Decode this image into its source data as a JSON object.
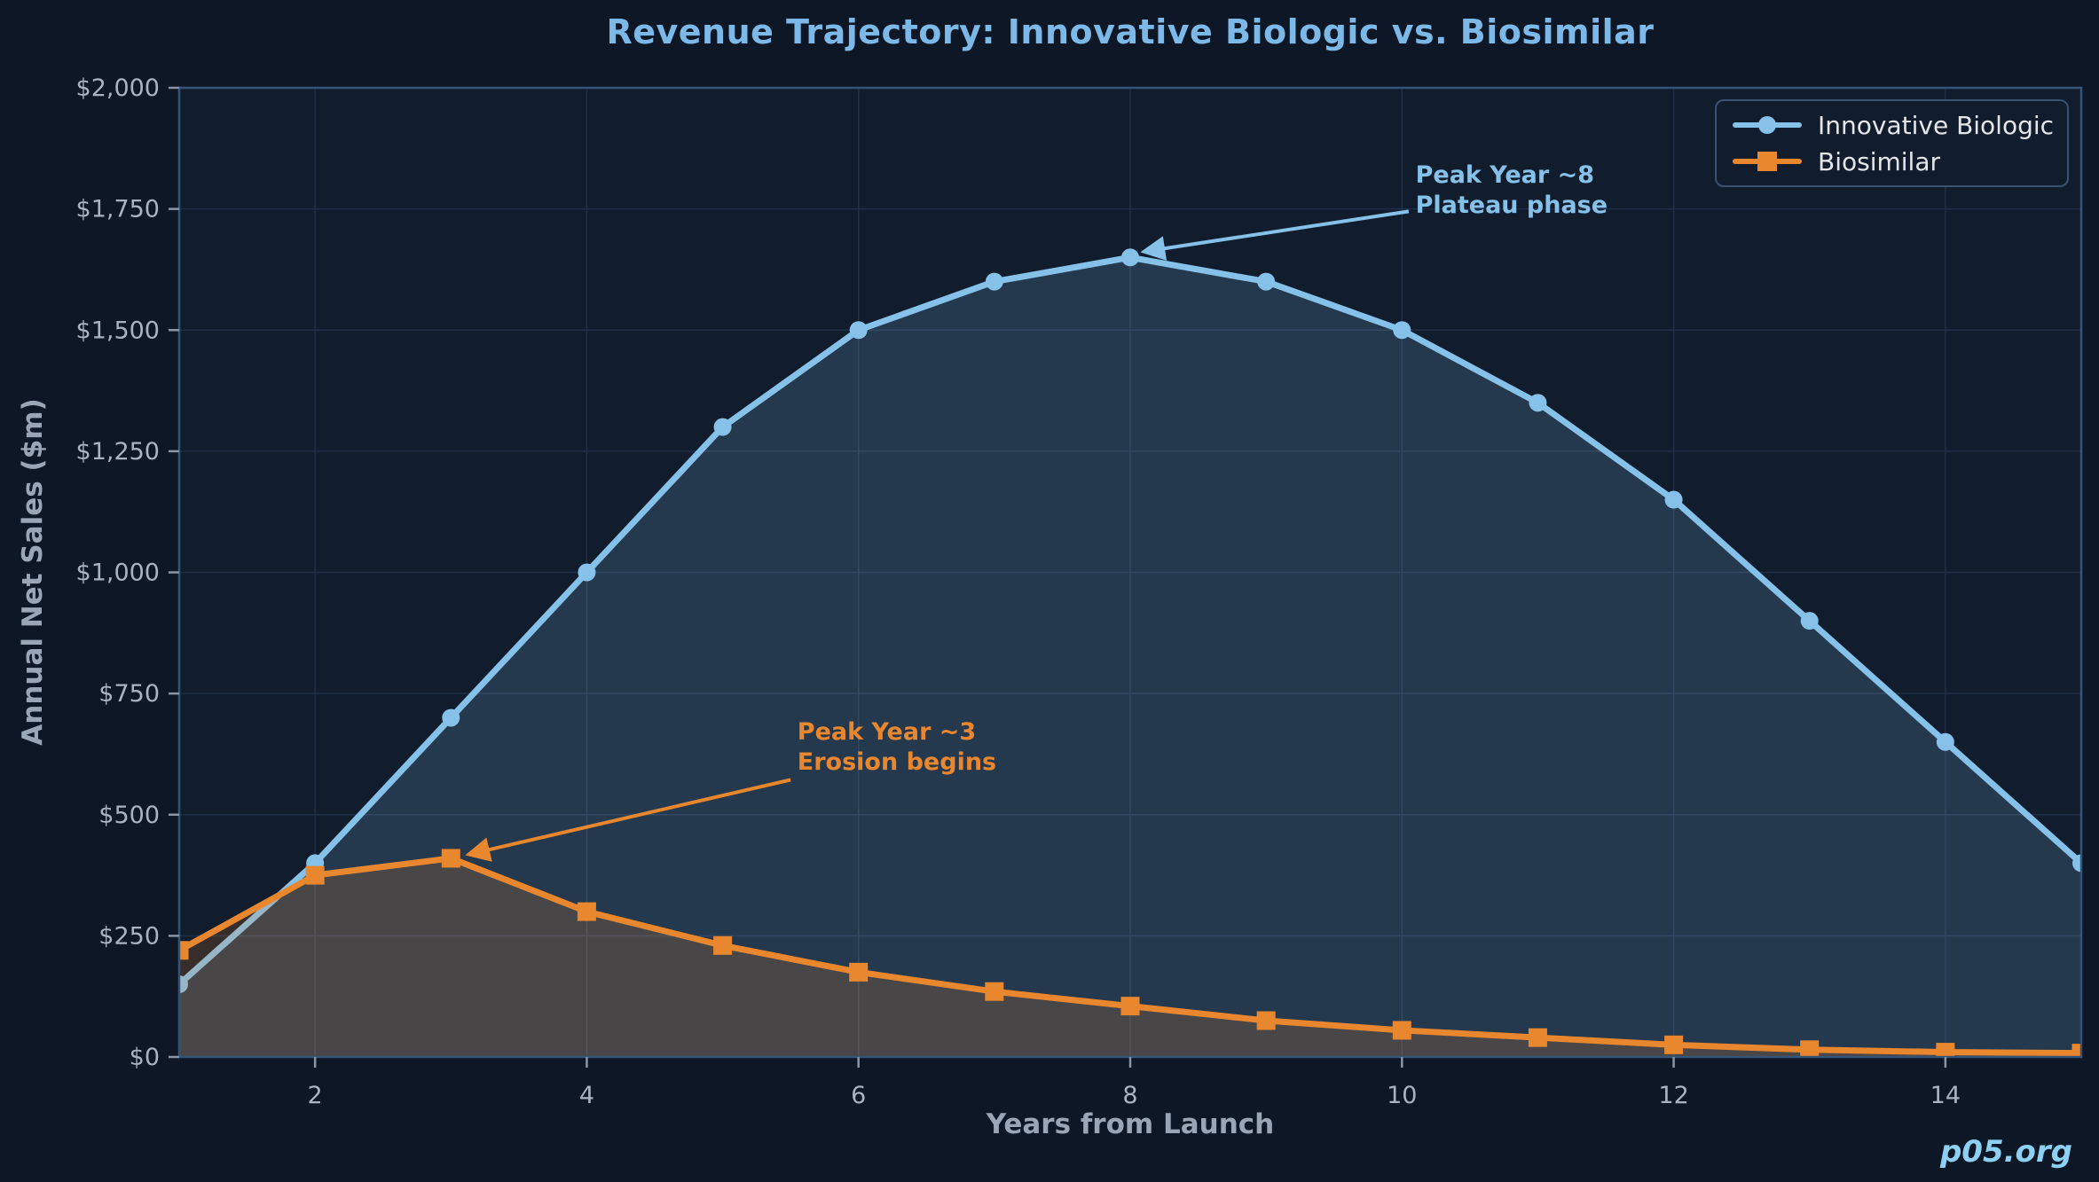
{
  "title": "Revenue Trajectory: Innovative Biologic vs. Biosimilar",
  "watermark": "p05.org",
  "colors": {
    "background": "#0d1725",
    "plot_background": "#111c2d",
    "grid": "#4a6288",
    "spine": "#375377",
    "tick": "#8b95a5",
    "tick_label": "#a9b3c2",
    "axis_label": "#9aa6b6",
    "title": "#7cb9e8",
    "legend_border": "#3a516f",
    "legend_text": "#e4e6ea",
    "watermark": "#8ed0f4"
  },
  "chart_data": {
    "type": "line",
    "title": "Revenue Trajectory: Innovative Biologic vs. Biosimilar",
    "xlabel": "Years from Launch",
    "ylabel": "Annual Net Sales ($m)",
    "xlim": [
      1,
      15
    ],
    "ylim": [
      0,
      2000
    ],
    "grid": true,
    "legend_position": "upper right",
    "x": [
      1,
      2,
      3,
      4,
      5,
      6,
      7,
      8,
      9,
      10,
      11,
      12,
      13,
      14,
      15
    ],
    "series": [
      {
        "name": "Innovative Biologic",
        "color": "#85c1e9",
        "marker": "circle",
        "fill_alpha": 0.18,
        "values": [
          150,
          400,
          700,
          1000,
          1300,
          1500,
          1600,
          1650,
          1600,
          1500,
          1350,
          1150,
          900,
          650,
          400
        ]
      },
      {
        "name": "Biosimilar",
        "color": "#e8872e",
        "marker": "square",
        "fill_alpha": 0.18,
        "values": [
          220,
          375,
          410,
          300,
          230,
          175,
          135,
          105,
          75,
          55,
          40,
          25,
          15,
          10,
          8
        ]
      }
    ],
    "x_ticks": {
      "values": [
        2,
        4,
        6,
        8,
        10,
        12,
        14
      ],
      "labels": [
        "2",
        "4",
        "6",
        "8",
        "10",
        "12",
        "14"
      ]
    },
    "y_ticks": {
      "values": [
        0,
        250,
        500,
        750,
        1000,
        1250,
        1500,
        1750,
        2000
      ],
      "labels": [
        "$0",
        "$250",
        "$500",
        "$750",
        "$1,000",
        "$1,250",
        "$1,500",
        "$1,750",
        "$2,000"
      ]
    },
    "annotations": [
      {
        "text": "Peak Year ~8\nPlateau phase",
        "color": "#85c1e9",
        "text_xy": [
          10.1,
          1850
        ],
        "arrow_from_xy": [
          10.05,
          1745
        ],
        "arrow_to_xy": [
          8.1,
          1662
        ]
      },
      {
        "text": "Peak Year ~3\nErosion begins",
        "color": "#e8872e",
        "text_xy": [
          5.55,
          700
        ],
        "arrow_from_xy": [
          5.5,
          572
        ],
        "arrow_to_xy": [
          3.13,
          418
        ]
      }
    ]
  }
}
